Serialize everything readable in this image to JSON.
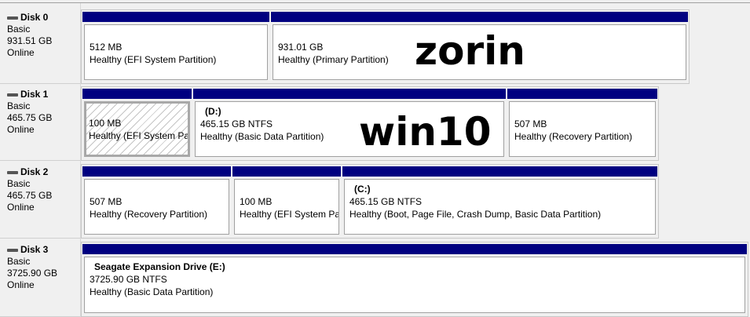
{
  "disks": [
    {
      "name": "Disk 0",
      "type": "Basic",
      "size": "931.51 GB",
      "status": "Online",
      "partitions": [
        {
          "volume": "",
          "size": "512 MB",
          "status": "Healthy (EFI System Partition)"
        },
        {
          "volume": "",
          "size": "931.01 GB",
          "status": "Healthy (Primary Partition)"
        }
      ]
    },
    {
      "name": "Disk 1",
      "type": "Basic",
      "size": "465.75 GB",
      "status": "Online",
      "partitions": [
        {
          "volume": "",
          "size": "100 MB",
          "status": "Healthy (EFI System Par",
          "selected": true
        },
        {
          "volume": "(D:)",
          "size": "465.15 GB NTFS",
          "status": "Healthy (Basic Data Partition)"
        },
        {
          "volume": "",
          "size": "507 MB",
          "status": "Healthy (Recovery Partition)"
        }
      ]
    },
    {
      "name": "Disk 2",
      "type": "Basic",
      "size": "465.75 GB",
      "status": "Online",
      "partitions": [
        {
          "volume": "",
          "size": "507 MB",
          "status": "Healthy (Recovery Partition)"
        },
        {
          "volume": "",
          "size": "100 MB",
          "status": "Healthy (EFI System Par"
        },
        {
          "volume": "(C:)",
          "size": "465.15 GB NTFS",
          "status": "Healthy (Boot, Page File, Crash Dump, Basic Data Partition)"
        }
      ]
    },
    {
      "name": "Disk 3",
      "type": "Basic",
      "size": "3725.90 GB",
      "status": "Online",
      "partitions": [
        {
          "volume": "Seagate Expansion Drive  (E:)",
          "size": "3725.90 GB NTFS",
          "status": "Healthy (Basic Data Partition)"
        }
      ]
    }
  ],
  "annotations": {
    "disk0": "zorin",
    "disk1": "win10"
  },
  "colors": {
    "partition_header": "#000080",
    "background": "#f0f0f0"
  }
}
